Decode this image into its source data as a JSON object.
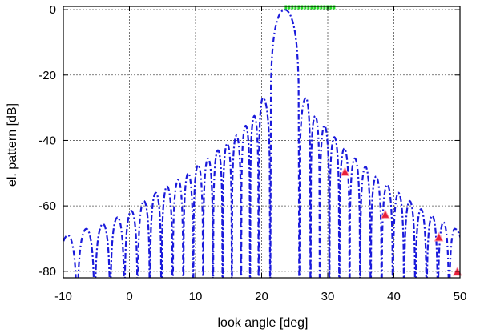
{
  "chart_data": {
    "type": "line",
    "title": "",
    "xlabel": "look angle [deg]",
    "ylabel": "el. pattern [dB]",
    "xlim": [
      -10,
      50
    ],
    "ylim": [
      -82,
      1
    ],
    "xticks": [
      -10,
      0,
      10,
      20,
      30,
      40,
      50
    ],
    "yticks": [
      0,
      -20,
      -40,
      -60,
      -80
    ],
    "xtick_labels": [
      "-10",
      "0",
      "10",
      "20",
      "30",
      "40",
      "50"
    ],
    "ytick_labels": [
      "0",
      "-20",
      "-40",
      "-60",
      "-80"
    ],
    "grid": true,
    "series": [
      {
        "kind": "pattern",
        "color": "#1a1adb",
        "style": "dash-dot",
        "main_lobe": {
          "peak_angle": 23.5,
          "peak_db": 0,
          "first_nulls": [
            21.3,
            25.7
          ]
        },
        "left_sidelobes": [
          {
            "angle": 20.2,
            "db": -27
          },
          {
            "angle": 18.9,
            "db": -32.5
          },
          {
            "angle": 17.6,
            "db": -35.5
          },
          {
            "angle": 16.2,
            "db": -38.5
          },
          {
            "angle": 14.8,
            "db": -41
          },
          {
            "angle": 13.4,
            "db": -43
          },
          {
            "angle": 11.9,
            "db": -45.5
          },
          {
            "angle": 10.4,
            "db": -47.5
          },
          {
            "angle": 8.9,
            "db": -50
          },
          {
            "angle": 7.4,
            "db": -52
          },
          {
            "angle": 5.7,
            "db": -54
          },
          {
            "angle": 4.0,
            "db": -56
          },
          {
            "angle": 2.2,
            "db": -58.5
          },
          {
            "angle": 0.3,
            "db": -61.5
          },
          {
            "angle": -1.8,
            "db": -63.5
          },
          {
            "angle": -4.0,
            "db": -65.5
          },
          {
            "angle": -6.5,
            "db": -67
          },
          {
            "angle": -9.3,
            "db": -69
          }
        ],
        "right_sidelobes": [
          {
            "angle": 26.7,
            "db": -27
          },
          {
            "angle": 28.1,
            "db": -32.5
          },
          {
            "angle": 29.5,
            "db": -35.5
          },
          {
            "angle": 31.0,
            "db": -39
          },
          {
            "angle": 32.5,
            "db": -42.5
          },
          {
            "angle": 34.1,
            "db": -45.5
          },
          {
            "angle": 35.7,
            "db": -48
          },
          {
            "angle": 37.3,
            "db": -51
          },
          {
            "angle": 39.0,
            "db": -53.5
          },
          {
            "angle": 40.7,
            "db": -56
          },
          {
            "angle": 42.4,
            "db": -58.5
          },
          {
            "angle": 44.1,
            "db": -61
          },
          {
            "angle": 45.8,
            "db": -63
          },
          {
            "angle": 47.5,
            "db": -65
          },
          {
            "angle": 49.2,
            "db": -67
          }
        ]
      },
      {
        "kind": "markers",
        "marker": "triangle",
        "color": "#e8203a",
        "x": [
          32.6,
          38.7,
          46.8,
          49.6
        ],
        "y": [
          -49.5,
          -62.5,
          -69.5,
          -80
        ]
      },
      {
        "kind": "segment",
        "color": "#22dd22",
        "x": [
          23.5,
          31.2
        ],
        "y": [
          1,
          1
        ]
      }
    ]
  }
}
